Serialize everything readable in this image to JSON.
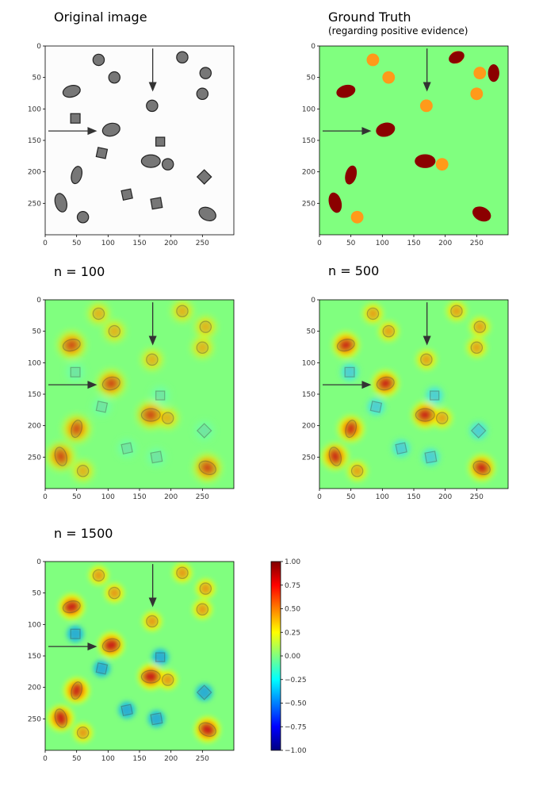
{
  "panels": {
    "original": {
      "title": "Original image"
    },
    "ground_truth": {
      "title": "Ground Truth",
      "subtitle": "(regarding positive evidence)"
    },
    "n100": {
      "title": "n = 100"
    },
    "n500": {
      "title": "n = 500"
    },
    "n1500": {
      "title": "n = 1500"
    }
  },
  "axis": {
    "x_ticks": [
      "0",
      "50",
      "100",
      "150",
      "200",
      "250"
    ],
    "y_ticks": [
      "0",
      "50",
      "100",
      "150",
      "200",
      "250"
    ]
  },
  "colorbar": {
    "ticks": [
      "1.00",
      "0.75",
      "0.50",
      "0.25",
      "0.00",
      "−0.25",
      "−0.50",
      "−0.75",
      "−1.00"
    ],
    "stops": [
      "#800000",
      "#ff0000",
      "#ff8000",
      "#ffff00",
      "#80ff80",
      "#00ffff",
      "#0080ff",
      "#0000ff",
      "#000080"
    ]
  },
  "colors": {
    "background_green": "#80ff7f",
    "dark_red": "#8b0000",
    "orange": "#ff9a1a",
    "shape_gray": "#777777"
  }
}
